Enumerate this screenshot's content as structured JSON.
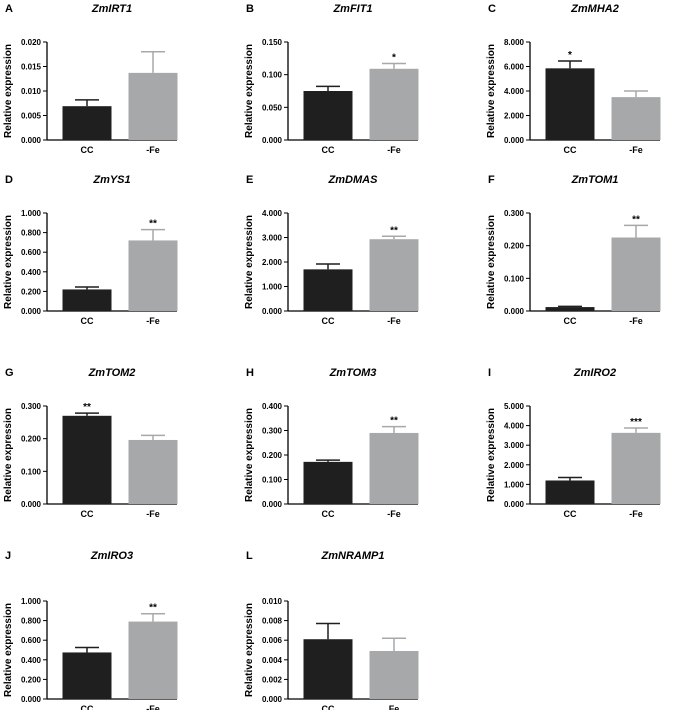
{
  "figure_title": "",
  "colors": {
    "control": "#1f1f1f",
    "treatment": "#a7a8aa",
    "axis": "#000000"
  },
  "chart_data": [
    {
      "panel": "A",
      "type": "bar",
      "title": "ZmIRT1",
      "ylabel": "Relative expression",
      "categories": [
        "CC",
        "-Fe"
      ],
      "values": [
        0.0069,
        0.0137
      ],
      "errors": [
        0.0013,
        0.0043
      ],
      "significance": [
        "",
        ""
      ],
      "ylim": [
        0,
        0.02
      ],
      "yticks": [
        "0.000",
        "0.005",
        "0.010",
        "0.015",
        "0.020"
      ]
    },
    {
      "panel": "B",
      "type": "bar",
      "title": "ZmFIT1",
      "ylabel": "Relative expression",
      "categories": [
        "CC",
        "-Fe"
      ],
      "values": [
        0.075,
        0.109
      ],
      "errors": [
        0.007,
        0.008
      ],
      "significance": [
        "",
        "*"
      ],
      "ylim": [
        0,
        0.15
      ],
      "yticks": [
        "0.000",
        "0.050",
        "0.100",
        "0.150"
      ]
    },
    {
      "panel": "C",
      "type": "bar",
      "title": "ZmMHA2",
      "ylabel": "Relative expression",
      "categories": [
        "CC",
        "-Fe"
      ],
      "values": [
        5.85,
        3.5
      ],
      "errors": [
        0.6,
        0.5
      ],
      "significance": [
        "*",
        ""
      ],
      "ylim": [
        0,
        8
      ],
      "yticks": [
        "0.000",
        "2.000",
        "4.000",
        "6.000",
        "8.000"
      ]
    },
    {
      "panel": "D",
      "type": "bar",
      "title": "ZmYS1",
      "ylabel": "Relative expression",
      "categories": [
        "CC",
        "-Fe"
      ],
      "values": [
        0.22,
        0.72
      ],
      "errors": [
        0.025,
        0.11
      ],
      "significance": [
        "",
        "**"
      ],
      "ylim": [
        0,
        1.0
      ],
      "yticks": [
        "0.000",
        "0.200",
        "0.400",
        "0.600",
        "0.800",
        "1.000"
      ]
    },
    {
      "panel": "E",
      "type": "bar",
      "title": "ZmDMAS",
      "ylabel": "Relative expression",
      "categories": [
        "CC",
        "-Fe"
      ],
      "values": [
        1.7,
        2.93
      ],
      "errors": [
        0.22,
        0.12
      ],
      "significance": [
        "",
        "**"
      ],
      "ylim": [
        0,
        4
      ],
      "yticks": [
        "0.000",
        "1.000",
        "2.000",
        "3.000",
        "4.000"
      ]
    },
    {
      "panel": "F",
      "type": "bar",
      "title": "ZmTOM1",
      "ylabel": "Relative expression",
      "categories": [
        "CC",
        "-Fe"
      ],
      "values": [
        0.012,
        0.225
      ],
      "errors": [
        0.002,
        0.037
      ],
      "significance": [
        "",
        "**"
      ],
      "ylim": [
        0,
        0.3
      ],
      "yticks": [
        "0.000",
        "0.100",
        "0.200",
        "0.300"
      ]
    },
    {
      "panel": "G",
      "type": "bar",
      "title": "ZmTOM2",
      "ylabel": "Relative expression",
      "categories": [
        "CC",
        "-Fe"
      ],
      "values": [
        0.27,
        0.196
      ],
      "errors": [
        0.008,
        0.014
      ],
      "significance": [
        "**",
        ""
      ],
      "ylim": [
        0,
        0.3
      ],
      "yticks": [
        "0.000",
        "0.100",
        "0.200",
        "0.300"
      ]
    },
    {
      "panel": "H",
      "type": "bar",
      "title": "ZmTOM3",
      "ylabel": "Relative expression",
      "categories": [
        "CC",
        "-Fe"
      ],
      "values": [
        0.172,
        0.29
      ],
      "errors": [
        0.007,
        0.026
      ],
      "significance": [
        "",
        "**"
      ],
      "ylim": [
        0,
        0.4
      ],
      "yticks": [
        "0.000",
        "0.100",
        "0.200",
        "0.300",
        "0.400"
      ]
    },
    {
      "panel": "I",
      "type": "bar",
      "title": "ZmIRO2",
      "ylabel": "Relative expression",
      "categories": [
        "CC",
        "-Fe"
      ],
      "values": [
        1.2,
        3.63
      ],
      "errors": [
        0.15,
        0.25
      ],
      "significance": [
        "",
        "***"
      ],
      "ylim": [
        0,
        5
      ],
      "yticks": [
        "0.000",
        "1.000",
        "2.000",
        "3.000",
        "4.000",
        "5.000"
      ]
    },
    {
      "panel": "J",
      "type": "bar",
      "title": "ZmIRO3",
      "ylabel": "Relative expression",
      "categories": [
        "CC",
        "-Fe"
      ],
      "values": [
        0.475,
        0.79
      ],
      "errors": [
        0.05,
        0.08
      ],
      "significance": [
        "",
        "**"
      ],
      "ylim": [
        0,
        1.0
      ],
      "yticks": [
        "0.000",
        "0.200",
        "0.400",
        "0.600",
        "0.800",
        "1.000"
      ]
    },
    {
      "panel": "L",
      "type": "bar",
      "title": "ZmNRAMP1",
      "ylabel": "Relative expression",
      "categories": [
        "CC",
        "Fe"
      ],
      "values": [
        0.0061,
        0.0049
      ],
      "errors": [
        0.0016,
        0.0013
      ],
      "significance": [
        "",
        ""
      ],
      "ylim": [
        0,
        0.01
      ],
      "yticks": [
        "0.000",
        "0.002",
        "0.004",
        "0.006",
        "0.008",
        "0.010"
      ]
    }
  ]
}
